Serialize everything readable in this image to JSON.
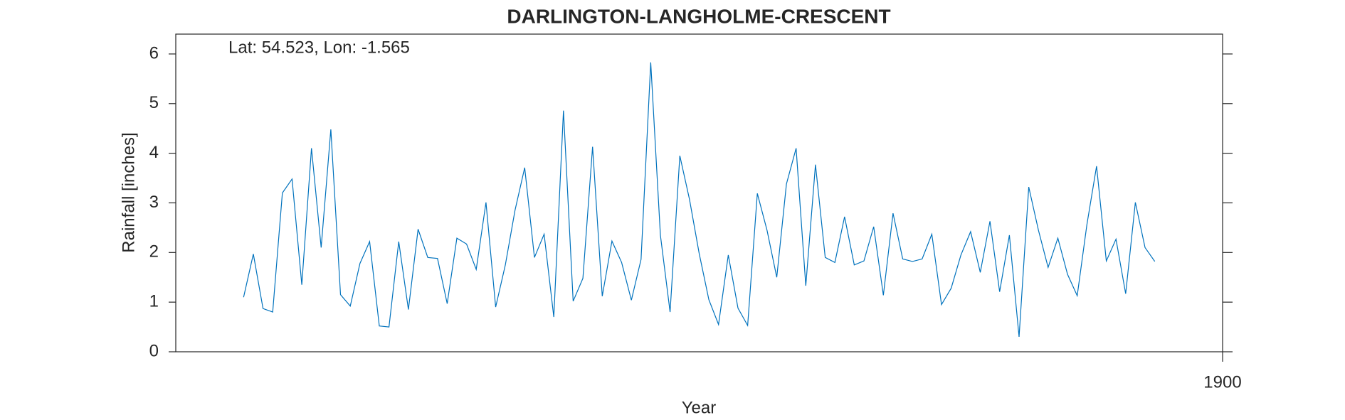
{
  "chart_data": {
    "type": "line",
    "title": "DARLINGTON-LANGHOLME-CRESCENT",
    "annotation": "Lat: 54.523, Lon: -1.565",
    "xlabel": "Year",
    "ylabel": "Rainfall [inches]",
    "color": "#0072bd",
    "x": [
      1799,
      1800,
      1801,
      1802,
      1803,
      1804,
      1805,
      1806,
      1807,
      1808,
      1809,
      1810,
      1811,
      1812,
      1813,
      1814,
      1815,
      1816,
      1817,
      1818,
      1819,
      1820,
      1821,
      1822,
      1823,
      1824,
      1825,
      1826,
      1827,
      1828,
      1829,
      1830,
      1831,
      1832,
      1833,
      1834,
      1835,
      1836,
      1837,
      1838,
      1839,
      1840,
      1841,
      1842,
      1843,
      1844,
      1845,
      1846,
      1847,
      1848,
      1849,
      1850,
      1851,
      1852,
      1853,
      1854,
      1855,
      1856,
      1857,
      1858,
      1859,
      1860,
      1861,
      1862,
      1863,
      1864,
      1865,
      1866,
      1867,
      1868,
      1869,
      1870,
      1871,
      1872,
      1873,
      1874,
      1875,
      1876,
      1877,
      1878,
      1879,
      1880,
      1881,
      1882,
      1883,
      1884,
      1885,
      1886,
      1887,
      1888,
      1889,
      1890,
      1891,
      1892,
      1893
    ],
    "values": [
      1.1,
      1.97,
      0.87,
      0.8,
      3.2,
      3.48,
      1.35,
      4.1,
      2.1,
      4.48,
      1.15,
      0.92,
      1.78,
      2.22,
      0.52,
      0.5,
      2.22,
      0.85,
      2.47,
      1.9,
      1.88,
      0.97,
      2.29,
      2.17,
      1.66,
      3.01,
      0.9,
      1.75,
      2.85,
      3.71,
      1.9,
      2.37,
      0.7,
      4.86,
      1.02,
      1.48,
      4.13,
      1.12,
      2.23,
      1.8,
      1.04,
      1.86,
      5.83,
      2.35,
      0.8,
      3.95,
      3.07,
      1.98,
      1.05,
      0.55,
      1.95,
      0.88,
      0.53,
      3.19,
      2.45,
      1.5,
      3.38,
      4.1,
      1.33,
      3.77,
      1.9,
      1.8,
      2.72,
      1.75,
      1.83,
      2.52,
      1.14,
      2.79,
      1.87,
      1.82,
      1.87,
      2.37,
      0.95,
      1.28,
      1.95,
      2.42,
      1.6,
      2.63,
      1.21,
      2.35,
      0.3,
      3.32,
      2.45,
      1.7,
      2.29,
      1.56,
      1.13,
      2.56,
      3.74,
      1.83,
      2.27,
      1.17,
      3.01,
      2.1,
      1.82
    ],
    "xlim": [
      1792,
      1900
    ],
    "xticks": [
      1900
    ],
    "ylim": [
      0,
      6.4
    ],
    "yticks": [
      0,
      1,
      2,
      3,
      4,
      5,
      6
    ]
  }
}
